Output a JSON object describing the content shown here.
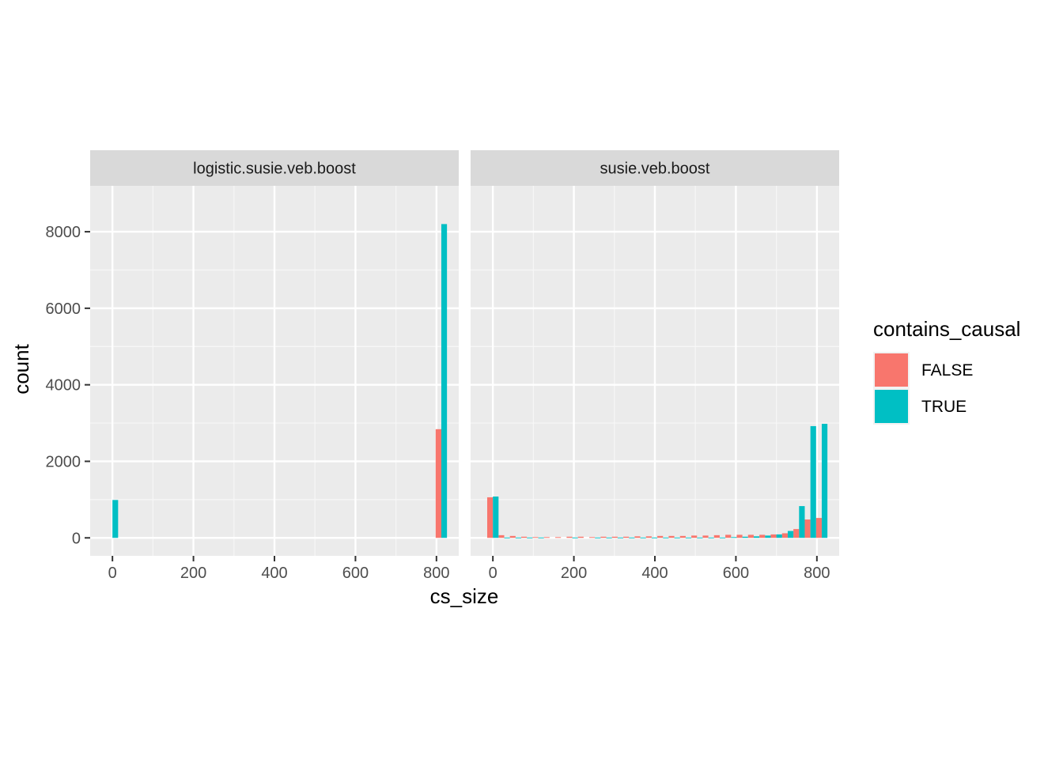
{
  "chart_data": {
    "type": "bar",
    "xlabel": "cs_size",
    "ylabel": "count",
    "xlim": [
      -55,
      855
    ],
    "ylim": [
      -470,
      9200
    ],
    "x_ticks": [
      0,
      200,
      400,
      600,
      800
    ],
    "y_ticks": [
      0,
      2000,
      4000,
      6000,
      8000
    ],
    "bin_width": 28,
    "legend": {
      "title": "contains_causal",
      "position": "right",
      "entries": [
        {
          "label": "FALSE",
          "color": "#F8766D"
        },
        {
          "label": "TRUE",
          "color": "#00BFC4"
        }
      ]
    },
    "panels": [
      {
        "strip": "logistic.susie.veb.boost",
        "bins": [
          0,
          28,
          56,
          84,
          112,
          140,
          168,
          196,
          224,
          252,
          280,
          308,
          336,
          364,
          392,
          420,
          448,
          476,
          504,
          532,
          560,
          588,
          616,
          644,
          672,
          700,
          728,
          756,
          784,
          812
        ],
        "series": [
          {
            "name": "FALSE",
            "values": [
              0,
              0,
              0,
              0,
              0,
              0,
              0,
              0,
              0,
              0,
              0,
              0,
              0,
              0,
              0,
              0,
              0,
              0,
              0,
              0,
              0,
              0,
              0,
              0,
              0,
              0,
              0,
              0,
              0,
              2840
            ]
          },
          {
            "name": "TRUE",
            "values": [
              990,
              0,
              0,
              0,
              0,
              0,
              0,
              0,
              0,
              0,
              0,
              0,
              0,
              0,
              0,
              0,
              0,
              0,
              0,
              0,
              0,
              0,
              0,
              0,
              0,
              0,
              0,
              0,
              0,
              8200
            ]
          }
        ]
      },
      {
        "strip": "susie.veb.boost",
        "bins": [
          0,
          28,
          56,
          84,
          112,
          140,
          168,
          196,
          224,
          252,
          280,
          308,
          336,
          364,
          392,
          420,
          448,
          476,
          504,
          532,
          560,
          588,
          616,
          644,
          672,
          700,
          728,
          756,
          784,
          812
        ],
        "series": [
          {
            "name": "FALSE",
            "values": [
              1060,
              70,
              50,
              30,
              20,
              20,
              20,
              30,
              30,
              20,
              30,
              30,
              30,
              40,
              40,
              50,
              50,
              50,
              60,
              60,
              70,
              80,
              80,
              80,
              80,
              90,
              120,
              230,
              480,
              520
            ]
          },
          {
            "name": "TRUE",
            "values": [
              1080,
              10,
              10,
              10,
              10,
              0,
              0,
              10,
              0,
              10,
              10,
              10,
              10,
              10,
              10,
              10,
              10,
              10,
              10,
              10,
              10,
              20,
              30,
              40,
              60,
              90,
              180,
              830,
              2920,
              2980
            ]
          }
        ]
      }
    ]
  }
}
